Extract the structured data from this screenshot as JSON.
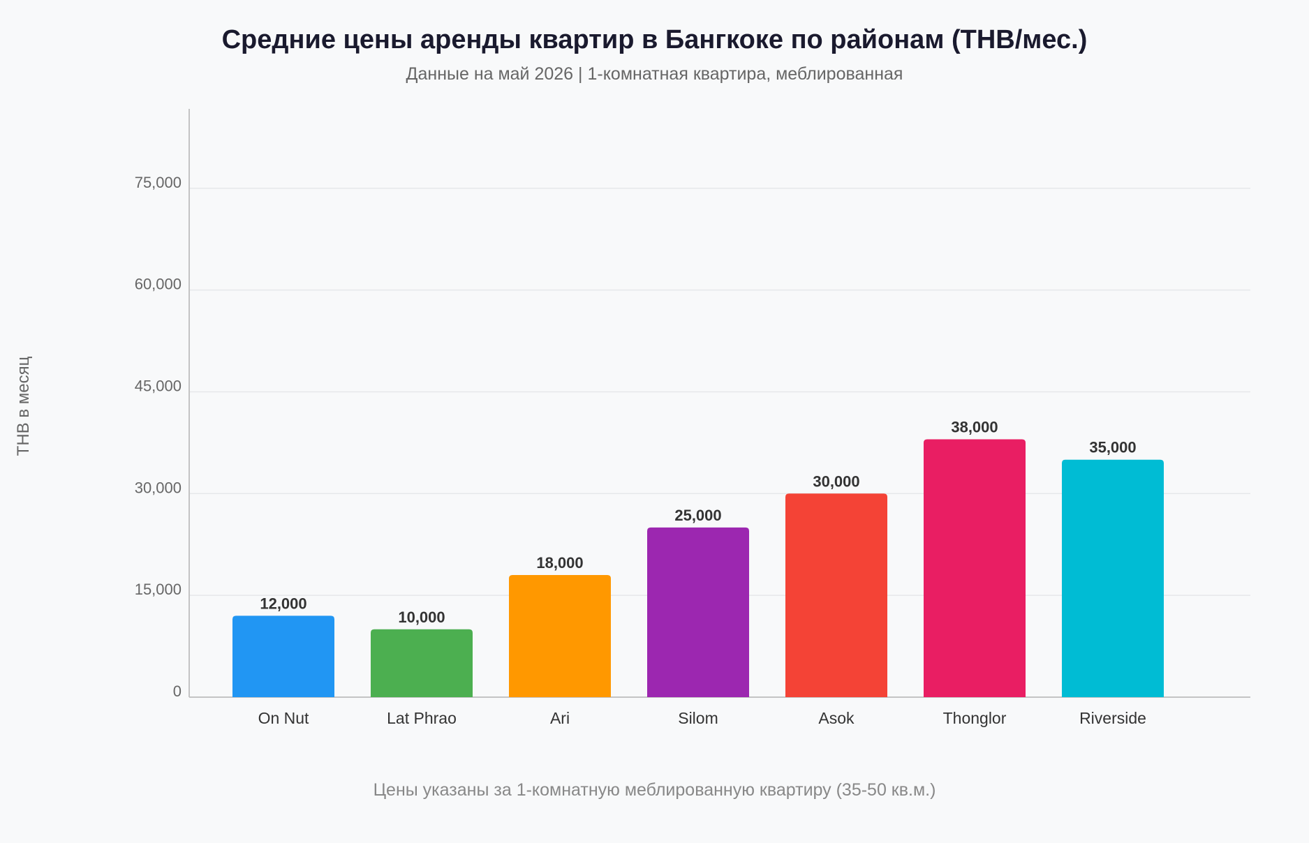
{
  "chart_data": {
    "type": "bar",
    "title": "Средние цены аренды квартир в Бангкоке по районам (THB/мес.)",
    "subtitle": "Данные на май 2026 | 1-комнатная квартира, меблированная",
    "xlabel": "",
    "ylabel": "THB в месяц",
    "footnote": "Цены указаны за 1-комнатную меблированную квартиру (35-50 кв.м.)",
    "categories": [
      "On Nut",
      "Lat Phrao",
      "Ari",
      "Silom",
      "Asok",
      "Thonglor",
      "Riverside"
    ],
    "values": [
      12000,
      10000,
      18000,
      25000,
      30000,
      38000,
      35000
    ],
    "value_labels": [
      "12,000",
      "10,000",
      "18,000",
      "25,000",
      "30,000",
      "38,000",
      "35,000"
    ],
    "colors": [
      "#2196f3",
      "#4caf50",
      "#ff9800",
      "#9c27b0",
      "#f44336",
      "#e91e63",
      "#00bcd4"
    ],
    "ylim": [
      0,
      86700
    ],
    "yticks": [
      0,
      15000,
      30000,
      45000,
      60000,
      75000
    ],
    "ytick_labels": [
      "0",
      "15,000",
      "30,000",
      "45,000",
      "60,000",
      "75,000"
    ],
    "grid": true,
    "legend": "none"
  }
}
